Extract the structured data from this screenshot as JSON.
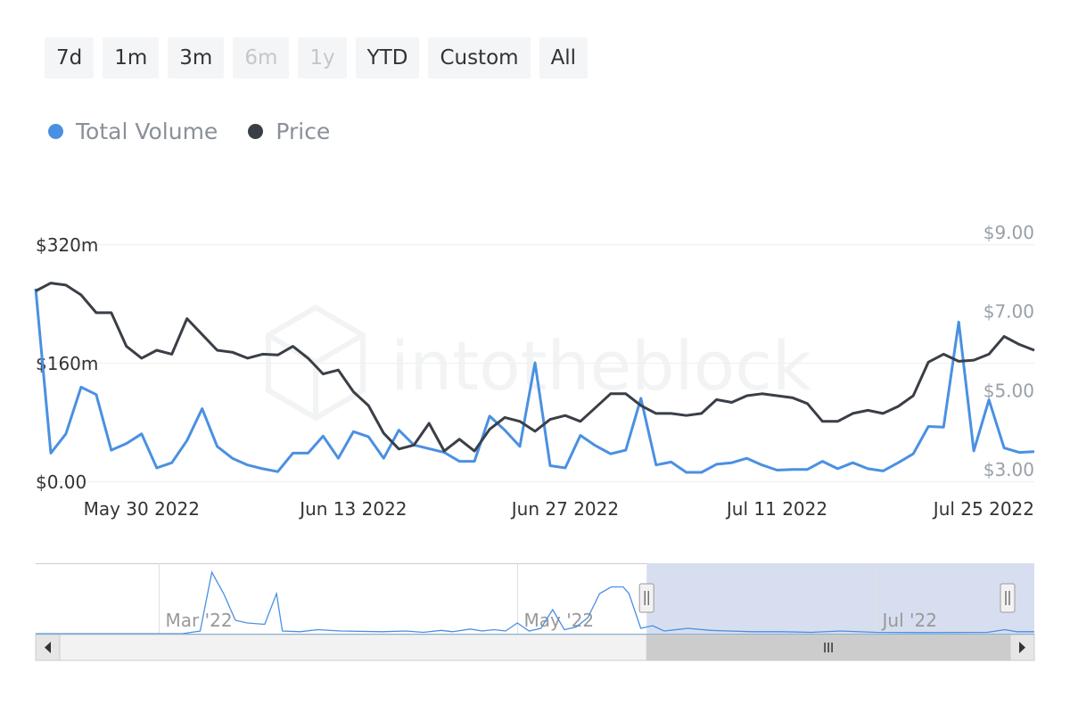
{
  "range_selector": {
    "buttons": [
      {
        "label": "7d",
        "enabled": true
      },
      {
        "label": "1m",
        "enabled": true
      },
      {
        "label": "3m",
        "enabled": true
      },
      {
        "label": "6m",
        "enabled": false
      },
      {
        "label": "1y",
        "enabled": false
      },
      {
        "label": "YTD",
        "enabled": true
      },
      {
        "label": "Custom",
        "enabled": true
      },
      {
        "label": "All",
        "enabled": true
      }
    ]
  },
  "watermark": "intotheblock",
  "colors": {
    "volume": "#4a90e2",
    "price": "#3a3f47",
    "axis_text": "#333333",
    "right_axis_text": "#9aa0a8",
    "navigator_fill": "#d7deef"
  },
  "chart_data": {
    "type": "line",
    "x_start": "2022-05-23",
    "x_end": "2022-07-28",
    "x_ticks": [
      {
        "date": "2022-05-30",
        "label": "May 30 2022"
      },
      {
        "date": "2022-06-13",
        "label": "Jun 13 2022"
      },
      {
        "date": "2022-06-27",
        "label": "Jun 27 2022"
      },
      {
        "date": "2022-07-11",
        "label": "Jul 11 2022"
      },
      {
        "date": "2022-07-25",
        "label": "Jul 25 2022"
      }
    ],
    "y_left": {
      "min": 0,
      "max": 320,
      "ticks": [
        {
          "v": 0,
          "label": "$0.00"
        },
        {
          "v": 160,
          "label": "$160m"
        },
        {
          "v": 320,
          "label": "$320m"
        }
      ]
    },
    "y_right": {
      "min": 3,
      "max": 9,
      "ticks": [
        {
          "v": 3,
          "label": "$3.00"
        },
        {
          "v": 5,
          "label": "$5.00"
        },
        {
          "v": 7,
          "label": "$7.00"
        },
        {
          "v": 9,
          "label": "$9.00"
        }
      ]
    },
    "series": [
      {
        "name": "Total Volume",
        "axis": "left",
        "points": [
          [
            "2022-05-23",
            260
          ],
          [
            "2022-05-24",
            38
          ],
          [
            "2022-05-25",
            64
          ],
          [
            "2022-05-26",
            127
          ],
          [
            "2022-05-27",
            117
          ],
          [
            "2022-05-28",
            42
          ],
          [
            "2022-05-29",
            51
          ],
          [
            "2022-05-30",
            64
          ],
          [
            "2022-05-31",
            18
          ],
          [
            "2022-06-01",
            25
          ],
          [
            "2022-06-02",
            55
          ],
          [
            "2022-06-03",
            98
          ],
          [
            "2022-06-04",
            47
          ],
          [
            "2022-06-05",
            31
          ],
          [
            "2022-06-06",
            22
          ],
          [
            "2022-06-07",
            17
          ],
          [
            "2022-06-08",
            13
          ],
          [
            "2022-06-09",
            38
          ],
          [
            "2022-06-10",
            38
          ],
          [
            "2022-06-11",
            61
          ],
          [
            "2022-06-12",
            31
          ],
          [
            "2022-06-13",
            67
          ],
          [
            "2022-06-14",
            60
          ],
          [
            "2022-06-15",
            31
          ],
          [
            "2022-06-16",
            69
          ],
          [
            "2022-06-17",
            49
          ],
          [
            "2022-06-18",
            44
          ],
          [
            "2022-06-19",
            39
          ],
          [
            "2022-06-20",
            27
          ],
          [
            "2022-06-21",
            27
          ],
          [
            "2022-06-22",
            88
          ],
          [
            "2022-06-23",
            69
          ],
          [
            "2022-06-24",
            47
          ],
          [
            "2022-06-25",
            160
          ],
          [
            "2022-06-26",
            21
          ],
          [
            "2022-06-27",
            18
          ],
          [
            "2022-06-28",
            62
          ],
          [
            "2022-06-29",
            48
          ],
          [
            "2022-06-30",
            37
          ],
          [
            "2022-07-01",
            42
          ],
          [
            "2022-07-02",
            112
          ],
          [
            "2022-07-03",
            22
          ],
          [
            "2022-07-04",
            26
          ],
          [
            "2022-07-05",
            12
          ],
          [
            "2022-07-06",
            12
          ],
          [
            "2022-07-07",
            23
          ],
          [
            "2022-07-08",
            25
          ],
          [
            "2022-07-09",
            31
          ],
          [
            "2022-07-10",
            22
          ],
          [
            "2022-07-11",
            15
          ],
          [
            "2022-07-12",
            16
          ],
          [
            "2022-07-13",
            16
          ],
          [
            "2022-07-14",
            27
          ],
          [
            "2022-07-15",
            17
          ],
          [
            "2022-07-16",
            25
          ],
          [
            "2022-07-17",
            17
          ],
          [
            "2022-07-18",
            14
          ],
          [
            "2022-07-19",
            25
          ],
          [
            "2022-07-20",
            37
          ],
          [
            "2022-07-21",
            74
          ],
          [
            "2022-07-22",
            73
          ],
          [
            "2022-07-23",
            215
          ],
          [
            "2022-07-24",
            41
          ],
          [
            "2022-07-25",
            110
          ],
          [
            "2022-07-26",
            45
          ],
          [
            "2022-07-27",
            39
          ],
          [
            "2022-07-28",
            40
          ]
        ]
      },
      {
        "name": "Price",
        "axis": "right",
        "points": [
          [
            "2022-05-23",
            7.5
          ],
          [
            "2022-05-24",
            7.7
          ],
          [
            "2022-05-25",
            7.65
          ],
          [
            "2022-05-26",
            7.4
          ],
          [
            "2022-05-27",
            6.95
          ],
          [
            "2022-05-28",
            6.95
          ],
          [
            "2022-05-29",
            6.1
          ],
          [
            "2022-05-30",
            5.8
          ],
          [
            "2022-05-31",
            6.0
          ],
          [
            "2022-06-01",
            5.9
          ],
          [
            "2022-06-02",
            6.8
          ],
          [
            "2022-06-03",
            6.4
          ],
          [
            "2022-06-04",
            6.0
          ],
          [
            "2022-06-05",
            5.95
          ],
          [
            "2022-06-06",
            5.8
          ],
          [
            "2022-06-07",
            5.9
          ],
          [
            "2022-06-08",
            5.88
          ],
          [
            "2022-06-09",
            6.1
          ],
          [
            "2022-06-10",
            5.8
          ],
          [
            "2022-06-11",
            5.4
          ],
          [
            "2022-06-12",
            5.5
          ],
          [
            "2022-06-13",
            4.95
          ],
          [
            "2022-06-14",
            4.6
          ],
          [
            "2022-06-15",
            3.9
          ],
          [
            "2022-06-16",
            3.5
          ],
          [
            "2022-06-17",
            3.6
          ],
          [
            "2022-06-18",
            4.15
          ],
          [
            "2022-06-19",
            3.45
          ],
          [
            "2022-06-20",
            3.75
          ],
          [
            "2022-06-21",
            3.45
          ],
          [
            "2022-06-22",
            4.0
          ],
          [
            "2022-06-23",
            4.3
          ],
          [
            "2022-06-24",
            4.2
          ],
          [
            "2022-06-25",
            3.95
          ],
          [
            "2022-06-26",
            4.25
          ],
          [
            "2022-06-27",
            4.35
          ],
          [
            "2022-06-28",
            4.2
          ],
          [
            "2022-06-29",
            4.55
          ],
          [
            "2022-06-30",
            4.9
          ],
          [
            "2022-07-01",
            4.9
          ],
          [
            "2022-07-02",
            4.6
          ],
          [
            "2022-07-03",
            4.4
          ],
          [
            "2022-07-04",
            4.4
          ],
          [
            "2022-07-05",
            4.35
          ],
          [
            "2022-07-06",
            4.4
          ],
          [
            "2022-07-07",
            4.75
          ],
          [
            "2022-07-08",
            4.68
          ],
          [
            "2022-07-09",
            4.85
          ],
          [
            "2022-07-10",
            4.9
          ],
          [
            "2022-07-11",
            4.85
          ],
          [
            "2022-07-12",
            4.8
          ],
          [
            "2022-07-13",
            4.65
          ],
          [
            "2022-07-14",
            4.2
          ],
          [
            "2022-07-15",
            4.2
          ],
          [
            "2022-07-16",
            4.4
          ],
          [
            "2022-07-17",
            4.48
          ],
          [
            "2022-07-18",
            4.4
          ],
          [
            "2022-07-19",
            4.58
          ],
          [
            "2022-07-20",
            4.85
          ],
          [
            "2022-07-21",
            5.7
          ],
          [
            "2022-07-22",
            5.9
          ],
          [
            "2022-07-23",
            5.72
          ],
          [
            "2022-07-24",
            5.75
          ],
          [
            "2022-07-25",
            5.9
          ],
          [
            "2022-07-26",
            6.35
          ],
          [
            "2022-07-27",
            6.15
          ],
          [
            "2022-07-28",
            6.0
          ]
        ]
      }
    ]
  },
  "navigator": {
    "x_start": "2022-02-08",
    "x_end": "2022-07-28",
    "labels": [
      {
        "date": "2022-03-01",
        "label": "Mar '22"
      },
      {
        "date": "2022-05-01",
        "label": "May '22"
      },
      {
        "date": "2022-07-01",
        "label": "Jul '22"
      }
    ],
    "selection": {
      "from": "2022-05-23",
      "to": "2022-07-28"
    },
    "series_max": 520,
    "volume": [
      [
        "2022-02-08",
        0
      ],
      [
        "2022-02-28",
        0
      ],
      [
        "2022-03-05",
        0
      ],
      [
        "2022-03-08",
        20
      ],
      [
        "2022-03-10",
        460
      ],
      [
        "2022-03-12",
        300
      ],
      [
        "2022-03-14",
        100
      ],
      [
        "2022-03-16",
        80
      ],
      [
        "2022-03-19",
        70
      ],
      [
        "2022-03-21",
        300
      ],
      [
        "2022-03-22",
        20
      ],
      [
        "2022-03-25",
        15
      ],
      [
        "2022-03-28",
        30
      ],
      [
        "2022-04-01",
        20
      ],
      [
        "2022-04-08",
        15
      ],
      [
        "2022-04-12",
        20
      ],
      [
        "2022-04-15",
        10
      ],
      [
        "2022-04-18",
        25
      ],
      [
        "2022-04-20",
        15
      ],
      [
        "2022-04-23",
        35
      ],
      [
        "2022-04-25",
        20
      ],
      [
        "2022-04-27",
        30
      ],
      [
        "2022-04-29",
        20
      ],
      [
        "2022-05-01",
        80
      ],
      [
        "2022-05-03",
        20
      ],
      [
        "2022-05-05",
        40
      ],
      [
        "2022-05-07",
        180
      ],
      [
        "2022-05-09",
        30
      ],
      [
        "2022-05-11",
        50
      ],
      [
        "2022-05-13",
        120
      ],
      [
        "2022-05-15",
        300
      ],
      [
        "2022-05-17",
        350
      ],
      [
        "2022-05-19",
        350
      ],
      [
        "2022-05-20",
        300
      ],
      [
        "2022-05-22",
        40
      ],
      [
        "2022-05-24",
        60
      ],
      [
        "2022-05-26",
        20
      ],
      [
        "2022-05-30",
        40
      ],
      [
        "2022-06-03",
        25
      ],
      [
        "2022-06-06",
        20
      ],
      [
        "2022-06-10",
        15
      ],
      [
        "2022-06-15",
        15
      ],
      [
        "2022-06-20",
        10
      ],
      [
        "2022-06-25",
        20
      ],
      [
        "2022-07-01",
        10
      ],
      [
        "2022-07-10",
        8
      ],
      [
        "2022-07-20",
        10
      ],
      [
        "2022-07-23",
        30
      ],
      [
        "2022-07-25",
        15
      ],
      [
        "2022-07-28",
        15
      ]
    ]
  }
}
